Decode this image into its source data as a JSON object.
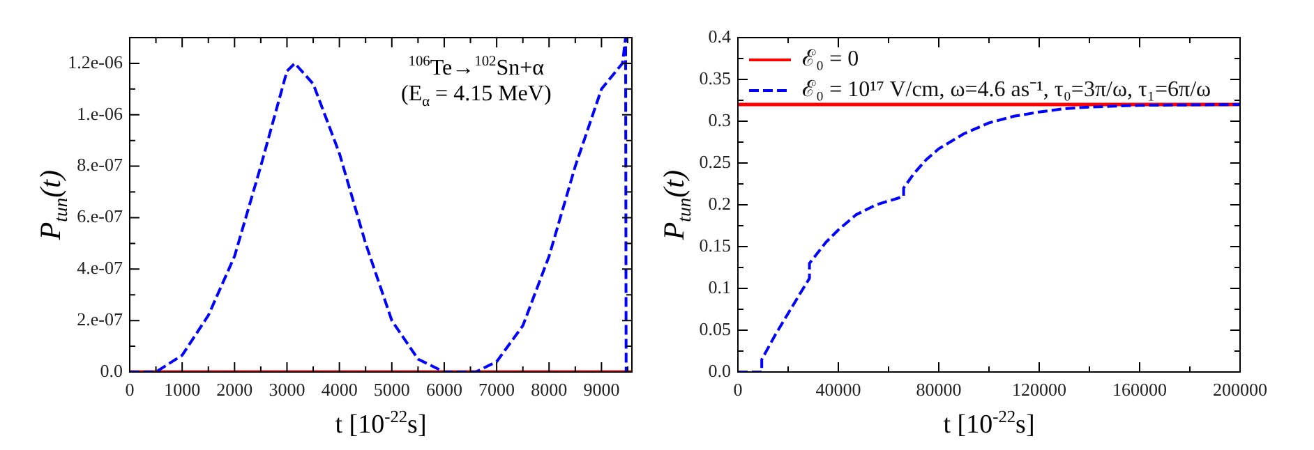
{
  "chart_data": [
    {
      "type": "line",
      "xlabel": "t [10$^{-22}$s]",
      "ylabel": "P$_{tun}$(t)",
      "annotations": [
        "$^{106}$Te→$^{102}$Sn+α",
        "(E$_{α}$ = 4.15 MeV)"
      ],
      "xlim": [
        0,
        9580
      ],
      "ylim": [
        0,
        1.3e-06
      ],
      "xticks": [
        0,
        {
          "value": 500,
          "label": null
        },
        1000,
        {
          "value": 1500,
          "label": null
        },
        2000,
        {
          "value": 2500,
          "label": null
        },
        3000,
        {
          "value": 3500,
          "label": null
        },
        4000,
        {
          "value": 4500,
          "label": null
        },
        5000,
        {
          "value": 5500,
          "label": null
        },
        6000,
        {
          "value": 6500,
          "label": null
        },
        7000,
        {
          "value": 7500,
          "label": null
        },
        8000,
        {
          "value": 8500,
          "label": null
        },
        9000,
        {
          "value": 9500,
          "label": null
        }
      ],
      "yticks": [
        {
          "value": 0,
          "label": "0.0"
        },
        {
          "value": 1e-07,
          "label": null
        },
        {
          "value": 2e-07,
          "label": "2.e-07"
        },
        {
          "value": 3e-07,
          "label": null
        },
        {
          "value": 4e-07,
          "label": "4.e-07"
        },
        {
          "value": 5e-07,
          "label": null
        },
        {
          "value": 6e-07,
          "label": "6.e-07"
        },
        {
          "value": 7e-07,
          "label": null
        },
        {
          "value": 8e-07,
          "label": "8.e-07"
        },
        {
          "value": 9e-07,
          "label": null
        },
        {
          "value": 1e-06,
          "label": "1.e-06"
        },
        {
          "value": 1.1e-06,
          "label": null
        },
        {
          "value": 1.2e-06,
          "label": "1.2e-06"
        }
      ],
      "grid": false,
      "legend": false,
      "marker": "none",
      "series": [
        {
          "color": "#ff0000",
          "line_style": "solid",
          "x": [
            0,
            9580
          ],
          "values": [
            0,
            0
          ]
        },
        {
          "color": "#0000ff",
          "line_style": "dashed",
          "x": [
            0,
            500,
            1000,
            1500,
            2000,
            2500,
            3000,
            3150,
            3500,
            4000,
            4500,
            5000,
            5500,
            6000,
            6300,
            6600,
            7000,
            7500,
            8000,
            8500,
            9000,
            9400,
            9460,
            9470
          ],
          "values": [
            0,
            0,
            6.5e-08,
            2.2e-07,
            4.5e-07,
            8e-07,
            1.17e-06,
            1.2e-06,
            1.12e-06,
            8.5e-07,
            5e-07,
            2e-07,
            5e-08,
            0,
            0,
            0,
            4e-08,
            1.8e-07,
            4.5e-07,
            8e-07,
            1.1e-06,
            1.2e-06,
            1.3e-06,
            0
          ]
        }
      ]
    },
    {
      "type": "line",
      "xlabel": "t [10$^{-22}$s]",
      "ylabel": "P$_{tun}$(t)",
      "xlim": [
        0,
        200000
      ],
      "ylim": [
        0,
        0.4
      ],
      "xticks": [
        0,
        {
          "value": 20000,
          "label": null
        },
        40000,
        {
          "value": 60000,
          "label": null
        },
        80000,
        {
          "value": 100000,
          "label": null
        },
        120000,
        {
          "value": 140000,
          "label": null
        },
        160000,
        {
          "value": 180000,
          "label": null
        },
        200000
      ],
      "yticks": [
        {
          "value": 0,
          "label": "0.0"
        },
        {
          "value": 0.025,
          "label": null
        },
        0.05,
        {
          "value": 0.075,
          "label": null
        },
        0.1,
        {
          "value": 0.125,
          "label": null
        },
        0.15,
        {
          "value": 0.175,
          "label": null
        },
        0.2,
        {
          "value": 0.225,
          "label": null
        },
        0.25,
        {
          "value": 0.275,
          "label": null
        },
        0.3,
        {
          "value": 0.325,
          "label": null
        },
        0.35,
        {
          "value": 0.375,
          "label": null
        },
        0.4
      ],
      "grid": false,
      "legend": "top left",
      "marker": "none",
      "series": [
        {
          "name": "ℰ₀ = 0",
          "color": "#ff0000",
          "line_style": "solid",
          "x": [
            0,
            200000
          ],
          "values": [
            0.32,
            0.32
          ]
        },
        {
          "name": "ℰ₀ = 10¹⁷ V/cm, ω=4.6 as⁻¹, τ₀=3π/ω, τ₁=6π/ω",
          "color": "#0000ff",
          "line_style": "dashed",
          "x": [
            0,
            9500,
            9500,
            15000,
            20000,
            25000,
            28500,
            28500,
            35000,
            40000,
            47000,
            55000,
            66000,
            66000,
            70000,
            75000,
            80000,
            90000,
            100000,
            110000,
            120000,
            130000,
            140000,
            160000,
            200000
          ],
          "values": [
            0,
            0,
            0.015,
            0.045,
            0.07,
            0.095,
            0.112,
            0.13,
            0.155,
            0.17,
            0.188,
            0.2,
            0.21,
            0.22,
            0.237,
            0.254,
            0.267,
            0.285,
            0.298,
            0.306,
            0.311,
            0.315,
            0.317,
            0.319,
            0.32
          ]
        }
      ]
    }
  ]
}
